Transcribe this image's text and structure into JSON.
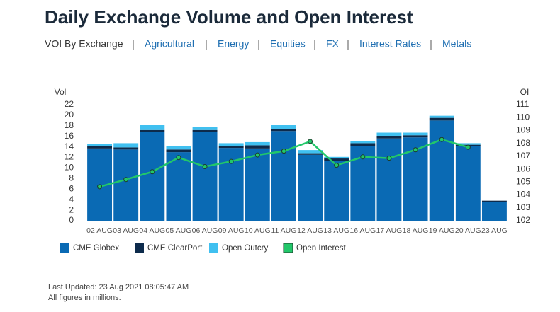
{
  "header": {
    "title": "Daily Exchange Volume and Open Interest"
  },
  "nav": [
    "VOI By Exchange",
    "Agricultural",
    "Energy",
    "Equities",
    "FX",
    "Interest Rates",
    "Metals"
  ],
  "chart_data": {
    "type": "bar",
    "stacked": true,
    "y_label": "Vol",
    "y2_label": "OI",
    "categories": [
      "02 AUG",
      "03 AUG",
      "04 AUG",
      "05 AUG",
      "06 AUG",
      "09 AUG",
      "10 AUG",
      "11 AUG",
      "12 AUG",
      "13 AUG",
      "16 AUG",
      "17 AUG",
      "18 AUG",
      "19 AUG",
      "20 AUG",
      "23 AUG"
    ],
    "series": [
      {
        "name": "CME Globex",
        "color": "#0a6ab4",
        "values": [
          13.7,
          13.5,
          16.8,
          13.0,
          16.8,
          13.8,
          13.7,
          17.0,
          12.5,
          11.4,
          14.2,
          15.6,
          15.8,
          19.0,
          14.1,
          3.6
        ]
      },
      {
        "name": "CME ClearPort",
        "color": "#0d2b4c",
        "values": [
          0.4,
          0.4,
          0.4,
          0.5,
          0.4,
          0.4,
          0.6,
          0.4,
          0.3,
          0.4,
          0.5,
          0.5,
          0.4,
          0.5,
          0.3,
          0.2
        ]
      },
      {
        "name": "Open Outcry",
        "color": "#40c0f0",
        "values": [
          0.4,
          0.8,
          1.0,
          0.7,
          0.6,
          0.5,
          0.6,
          0.8,
          0.6,
          0.3,
          0.4,
          0.6,
          0.5,
          0.4,
          0.3,
          0
        ]
      },
      {
        "name": "Open Interest",
        "color": "#22c76a",
        "type": "line",
        "axis": "y2",
        "values": [
          104.64,
          105.2,
          105.8,
          106.9,
          106.2,
          106.6,
          107.1,
          107.4,
          108.15,
          106.3,
          106.95,
          106.85,
          107.5,
          108.3,
          107.7,
          null
        ]
      }
    ],
    "ylim": [
      0,
      22
    ],
    "yticks": [
      0,
      2,
      4,
      6,
      8,
      10,
      12,
      14,
      16,
      18,
      20,
      22
    ],
    "y2lim": [
      102,
      111
    ],
    "y2ticks": [
      102,
      103,
      104,
      105,
      106,
      107,
      108,
      109,
      110,
      111
    ],
    "legend": "bottom-left"
  },
  "footer": [
    "Last Updated: 23 Aug 2021 08:05:47 AM",
    "All figures in millions."
  ]
}
